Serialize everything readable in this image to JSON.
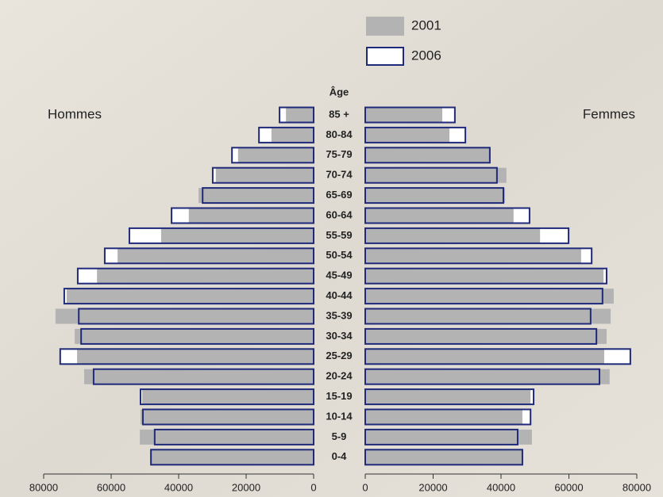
{
  "chart_data": {
    "type": "population_pyramid",
    "y_label": "Âge",
    "categories": [
      "85 +",
      "80-84",
      "75-79",
      "70-74",
      "65-69",
      "60-64",
      "55-59",
      "50-54",
      "45-49",
      "40-44",
      "35-39",
      "30-34",
      "25-29",
      "20-24",
      "15-19",
      "10-14",
      "5-9",
      "0-4"
    ],
    "legend": [
      {
        "name": "2001",
        "color": "#b3b3b3",
        "stroke": "#b3b3b3"
      },
      {
        "name": "2006",
        "color": "#ffffff",
        "stroke": "#1f2a7a"
      }
    ],
    "panels": [
      {
        "label": "Hommes",
        "direction": "left",
        "xlim": [
          0,
          80000
        ],
        "xticks": [
          0,
          20000,
          40000,
          60000,
          80000
        ],
        "series": [
          {
            "values": [
              8200,
              12500,
              22400,
              29000,
              34100,
              37000,
              45200,
              58100,
              64200,
              73200,
              76500,
              70800,
              70100,
              68000,
              50800,
              51300,
              51500,
              48500
            ]
          },
          {
            "values": [
              10100,
              16200,
              24200,
              29900,
              32900,
              42100,
              54600,
              61900,
              69900,
              73900,
              69600,
              68900,
              75100,
              65200,
              51300,
              50600,
              47100,
              48200
            ]
          }
        ]
      },
      {
        "label": "Femmes",
        "direction": "right",
        "xlim": [
          0,
          80000
        ],
        "xticks": [
          0,
          20000,
          40000,
          60000,
          80000
        ],
        "series": [
          {
            "values": [
              22700,
              24800,
              36700,
              41600,
              41200,
              43700,
              51500,
              63600,
              70200,
              73200,
              72300,
              71100,
              70400,
              72000,
              48700,
              46300,
              49100,
              46100
            ]
          },
          {
            "values": [
              26400,
              29500,
              36700,
              38800,
              40700,
              48400,
              59900,
              66700,
              71100,
              69900,
              66400,
              68100,
              78100,
              69000,
              49600,
              48700,
              44900,
              46300
            ]
          }
        ]
      }
    ]
  }
}
